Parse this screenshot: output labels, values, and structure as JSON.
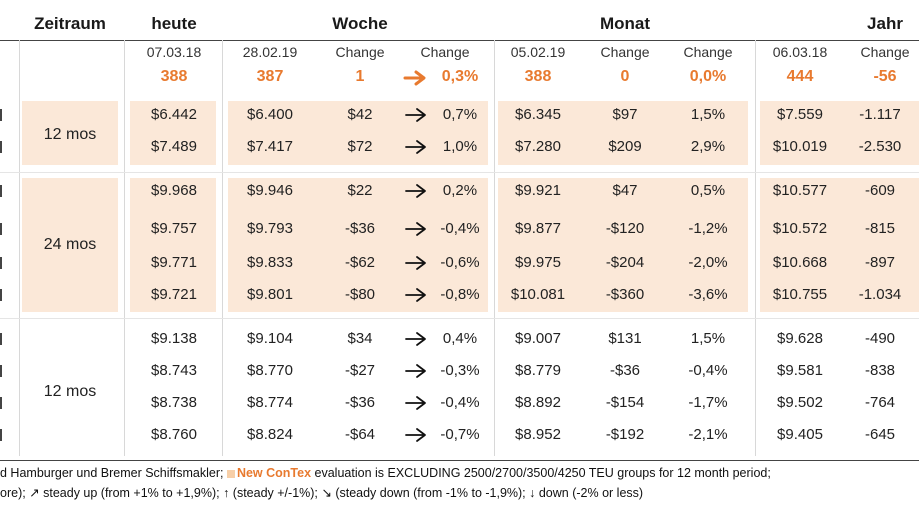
{
  "headers": {
    "zeitraum": "Zeitraum",
    "heute": "heute",
    "woche": "Woche",
    "monat": "Monat",
    "jahr": "Jahr"
  },
  "subheaders": {
    "heute_date": "07.03.18",
    "woche_date": "28.02.19",
    "woche_change": "Change",
    "woche_change_pct": "Change",
    "monat_date": "05.02.19",
    "monat_change": "Change",
    "monat_change_pct": "Change",
    "jahr_date": "06.03.18",
    "jahr_change": "Change"
  },
  "totals": {
    "heute": "388",
    "woche": "387",
    "woche_change": "1",
    "woche_change_pct": "0,3%",
    "monat": "388",
    "monat_change": "0",
    "monat_change_pct": "0,0%",
    "jahr": "444",
    "jahr_change": "-56"
  },
  "groups": [
    {
      "zeitraum": "12 mos",
      "shaded": true
    },
    {
      "zeitraum": "24 mos",
      "shaded": true
    },
    {
      "zeitraum": "12 mos",
      "shaded": false
    }
  ],
  "rows": [
    {
      "heute": "$6.442",
      "woche": "$6.400",
      "w_change": "$42",
      "w_pct": "0,7%",
      "monat": "$6.345",
      "m_change": "$97",
      "m_pct": "1,5%",
      "jahr": "$7.559",
      "j_change": "-1.117"
    },
    {
      "heute": "$7.489",
      "woche": "$7.417",
      "w_change": "$72",
      "w_pct": "1,0%",
      "monat": "$7.280",
      "m_change": "$209",
      "m_pct": "2,9%",
      "jahr": "$10.019",
      "j_change": "-2.530"
    },
    {
      "heute": "$9.968",
      "woche": "$9.946",
      "w_change": "$22",
      "w_pct": "0,2%",
      "monat": "$9.921",
      "m_change": "$47",
      "m_pct": "0,5%",
      "jahr": "$10.577",
      "j_change": "-609"
    },
    {
      "heute": "$9.757",
      "woche": "$9.793",
      "w_change": "-$36",
      "w_pct": "-0,4%",
      "monat": "$9.877",
      "m_change": "-$120",
      "m_pct": "-1,2%",
      "jahr": "$10.572",
      "j_change": "-815"
    },
    {
      "heute": "$9.771",
      "woche": "$9.833",
      "w_change": "-$62",
      "w_pct": "-0,6%",
      "monat": "$9.975",
      "m_change": "-$204",
      "m_pct": "-2,0%",
      "jahr": "$10.668",
      "j_change": "-897"
    },
    {
      "heute": "$9.721",
      "woche": "$9.801",
      "w_change": "-$80",
      "w_pct": "-0,8%",
      "monat": "$10.081",
      "m_change": "-$360",
      "m_pct": "-3,6%",
      "jahr": "$10.755",
      "j_change": "-1.034"
    },
    {
      "heute": "$9.138",
      "woche": "$9.104",
      "w_change": "$34",
      "w_pct": "0,4%",
      "monat": "$9.007",
      "m_change": "$131",
      "m_pct": "1,5%",
      "jahr": "$9.628",
      "j_change": "-490"
    },
    {
      "heute": "$8.743",
      "woche": "$8.770",
      "w_change": "-$27",
      "w_pct": "-0,3%",
      "monat": "$8.779",
      "m_change": "-$36",
      "m_pct": "-0,4%",
      "jahr": "$9.581",
      "j_change": "-838"
    },
    {
      "heute": "$8.738",
      "woche": "$8.774",
      "w_change": "-$36",
      "w_pct": "-0,4%",
      "monat": "$8.892",
      "m_change": "-$154",
      "m_pct": "-1,7%",
      "jahr": "$9.502",
      "j_change": "-764"
    },
    {
      "heute": "$8.760",
      "woche": "$8.824",
      "w_change": "-$64",
      "w_pct": "-0,7%",
      "monat": "$8.952",
      "m_change": "-$192",
      "m_pct": "-2,1%",
      "jahr": "$9.405",
      "j_change": "-645"
    }
  ],
  "footer": {
    "line1_a": "d Hamburger und Bremer Schiffsmakler;",
    "line1_badge": "New ConTex",
    "line1_b": "evaluation is EXCLUDING 2500/2700/3500/4250 TEU groups for 12 month period;",
    "line2": "ore); ↗ steady up (from +1% to +1,9%); ↑ (steady +/-1%); ↘ (steady down (from -1% to -1,9%); ↓ down (-2% or less)"
  },
  "colors": {
    "accent": "#e87a2f",
    "band": "#fbe8d8"
  }
}
